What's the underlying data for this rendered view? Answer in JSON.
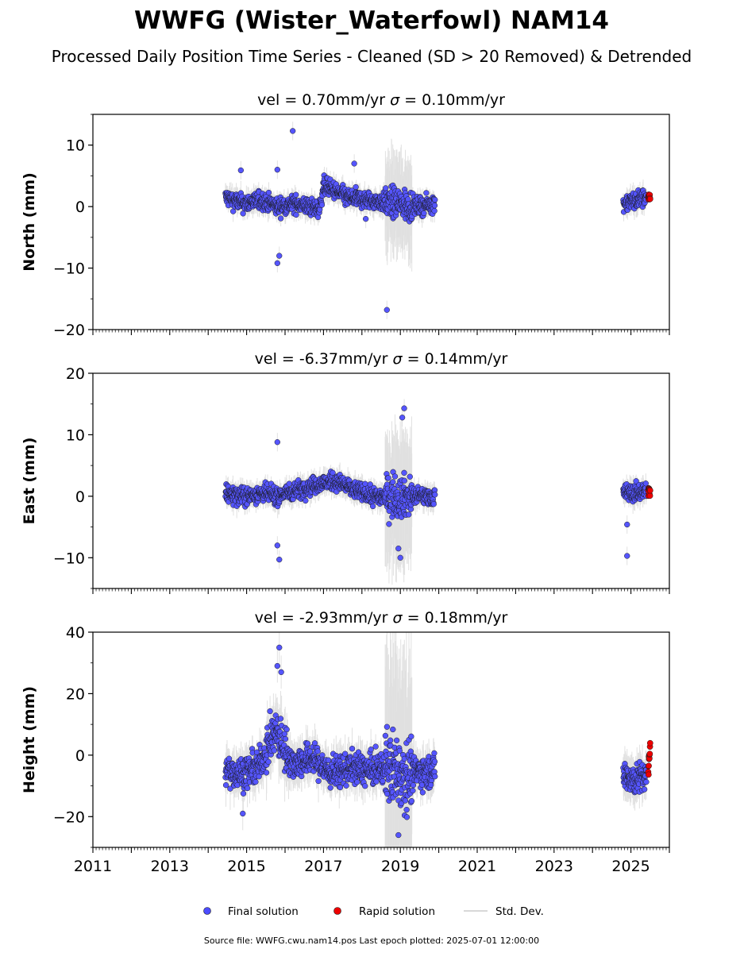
{
  "title": "WWFG (Wister_Waterfowl) NAM14",
  "subtitle": "Processed Daily Position Time Series - Cleaned (SD > 20 Removed) & Detrended",
  "footer": "Source file: WWFG.cwu.nam14.pos  Last epoch plotted: 2025-07-01 12:00:00",
  "legend": {
    "placement": "bottom-center",
    "items": [
      {
        "label": "Final solution",
        "color": "#4c4cff",
        "kind": "marker"
      },
      {
        "label": "Rapid solution",
        "color": "#ee0000",
        "kind": "marker"
      },
      {
        "label": "Std. Dev.",
        "color": "#cccccc",
        "kind": "line"
      }
    ]
  },
  "colors": {
    "final": "#5555ff",
    "rapid": "#ee0000",
    "std": "#aaaaaa",
    "edge": "#1a1a1a"
  },
  "chart_data": [
    {
      "type": "scatter",
      "panel": "north",
      "title_vel": "vel = 0.70mm/yr",
      "title_sigma": "= 0.10mm/yr",
      "ylabel": "North (mm)",
      "xlim": [
        2011,
        2026
      ],
      "ylim": [
        -20,
        15
      ],
      "yticks": [
        -20,
        -10,
        0,
        10
      ],
      "ytick_labels": [
        "−20",
        "−10",
        "0",
        "10"
      ],
      "series_segments": [
        {
          "x": [
            2014.45,
            2014.9,
            2015.4,
            2015.8,
            2016.3,
            2016.9,
            2017.0,
            2017.6,
            2018.2,
            2018.9,
            2019.4,
            2019.9
          ],
          "y": [
            1.5,
            0.5,
            1.0,
            0.0,
            0.5,
            -0.5,
            3.5,
            1.5,
            1.0,
            0.5,
            0.0,
            0.5
          ]
        },
        {
          "x": [
            2024.8,
            2025.1,
            2025.4
          ],
          "y": [
            0.5,
            1.0,
            1.5
          ]
        }
      ],
      "outliers": [
        [
          2016.2,
          12.3
        ],
        [
          2015.8,
          -9.2
        ],
        [
          2015.85,
          -8.0
        ],
        [
          2018.65,
          -16.8
        ],
        [
          2017.8,
          7.0
        ],
        [
          2015.8,
          6.0
        ],
        [
          2014.85,
          5.9
        ],
        [
          2018.1,
          -2.0
        ]
      ],
      "rapid": {
        "x": [
          2025.45,
          2025.5
        ],
        "y": [
          1.5,
          1.0
        ]
      }
    },
    {
      "type": "scatter",
      "panel": "east",
      "title_vel": "vel = -6.37mm/yr",
      "title_sigma": "= 0.14mm/yr",
      "ylabel": "East (mm)",
      "xlim": [
        2011,
        2026
      ],
      "ylim": [
        -15,
        20
      ],
      "yticks": [
        -10,
        0,
        10,
        20
      ],
      "ytick_labels": [
        "−10",
        "0",
        "10",
        "20"
      ],
      "series_segments": [
        {
          "x": [
            2014.45,
            2014.9,
            2015.4,
            2015.8,
            2016.3,
            2016.9,
            2017.3,
            2017.8,
            2018.3,
            2018.9,
            2019.4,
            2019.9
          ],
          "y": [
            0.5,
            0.0,
            0.5,
            0.0,
            1.0,
            2.0,
            2.5,
            1.0,
            0.0,
            0.0,
            0.0,
            0.0
          ]
        },
        {
          "x": [
            2024.8,
            2025.1,
            2025.4
          ],
          "y": [
            0.5,
            0.5,
            1.0
          ]
        }
      ],
      "outliers": [
        [
          2015.8,
          8.8
        ],
        [
          2015.85,
          -10.3
        ],
        [
          2019.05,
          12.8
        ],
        [
          2019.1,
          14.3
        ],
        [
          2019.0,
          -10.0
        ],
        [
          2024.9,
          -9.7
        ],
        [
          2024.9,
          -4.6
        ],
        [
          2015.8,
          -8.0
        ],
        [
          2018.95,
          -8.5
        ]
      ],
      "rapid": {
        "x": [
          2025.45,
          2025.5
        ],
        "y": [
          1.0,
          0.5
        ]
      }
    },
    {
      "type": "scatter",
      "panel": "height",
      "title_vel": "vel = -2.93mm/yr",
      "title_sigma": "= 0.18mm/yr",
      "ylabel": "Height (mm)",
      "xlim": [
        2011,
        2026
      ],
      "ylim": [
        -30,
        40
      ],
      "yticks": [
        -20,
        0,
        20,
        40
      ],
      "ytick_labels": [
        "−20",
        "0",
        "20",
        "40"
      ],
      "xticks": [
        2011,
        2013,
        2015,
        2017,
        2019,
        2021,
        2023,
        2025
      ],
      "xtick_labels": [
        "2011",
        "2013",
        "2015",
        "2017",
        "2019",
        "2021",
        "2023",
        "2025"
      ],
      "series_segments": [
        {
          "x": [
            2014.45,
            2014.9,
            2015.3,
            2015.75,
            2016.2,
            2016.7,
            2017.2,
            2017.7,
            2018.2,
            2018.7,
            2019.2,
            2019.9
          ],
          "y": [
            -5.0,
            -6.0,
            -4.0,
            8.0,
            -3.0,
            -1.0,
            -6.0,
            -4.0,
            -5.0,
            -4.0,
            -6.0,
            -5.0
          ]
        },
        {
          "x": [
            2024.8,
            2025.1,
            2025.4
          ],
          "y": [
            -6.0,
            -8.0,
            -7.0
          ]
        }
      ],
      "outliers": [
        [
          2015.85,
          35.0
        ],
        [
          2015.8,
          29.0
        ],
        [
          2015.9,
          27.0
        ],
        [
          2018.95,
          -26.0
        ],
        [
          2014.9,
          -19.0
        ]
      ],
      "rapid": {
        "x": [
          2025.45,
          2025.5
        ],
        "y": [
          -6.0,
          2.5
        ]
      }
    }
  ]
}
